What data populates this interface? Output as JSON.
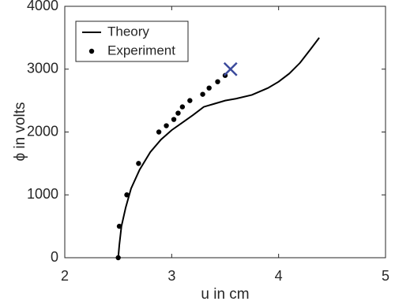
{
  "chart_data": {
    "type": "line",
    "xlabel": "u in cm",
    "ylabel": "ϕ in volts",
    "xlim": [
      2,
      5
    ],
    "xticks": [
      2,
      3,
      4,
      5
    ],
    "ylim": [
      0,
      4000
    ],
    "yticks": [
      0,
      1000,
      2000,
      3000,
      4000
    ],
    "grid": false,
    "legend": "upper left",
    "series": [
      {
        "name": "Theory",
        "style": "line",
        "color": "#000000",
        "x": [
          2.5,
          2.51,
          2.53,
          2.57,
          2.62,
          2.7,
          2.8,
          2.9,
          3.0,
          3.1,
          3.2,
          3.3,
          3.4,
          3.5,
          3.6,
          3.75,
          3.9,
          4.0,
          4.1,
          4.2,
          4.3,
          4.38
        ],
        "values": [
          0,
          200,
          500,
          800,
          1100,
          1400,
          1680,
          1880,
          2030,
          2150,
          2270,
          2400,
          2450,
          2500,
          2530,
          2590,
          2700,
          2800,
          2930,
          3100,
          3320,
          3500
        ]
      },
      {
        "name": "Experiment",
        "style": "markers",
        "color": "#000000",
        "x": [
          2.5,
          2.51,
          2.58,
          2.69,
          2.88,
          2.95,
          3.02,
          3.06,
          3.1,
          3.17,
          3.29,
          3.35,
          3.43,
          3.5
        ],
        "values": [
          0,
          500,
          1000,
          1500,
          2000,
          2100,
          2200,
          2300,
          2400,
          2500,
          2600,
          2700,
          2800,
          2900
        ]
      }
    ],
    "marker_point": {
      "x": 3.55,
      "y": 3000,
      "color": "#3b4a9c"
    }
  }
}
